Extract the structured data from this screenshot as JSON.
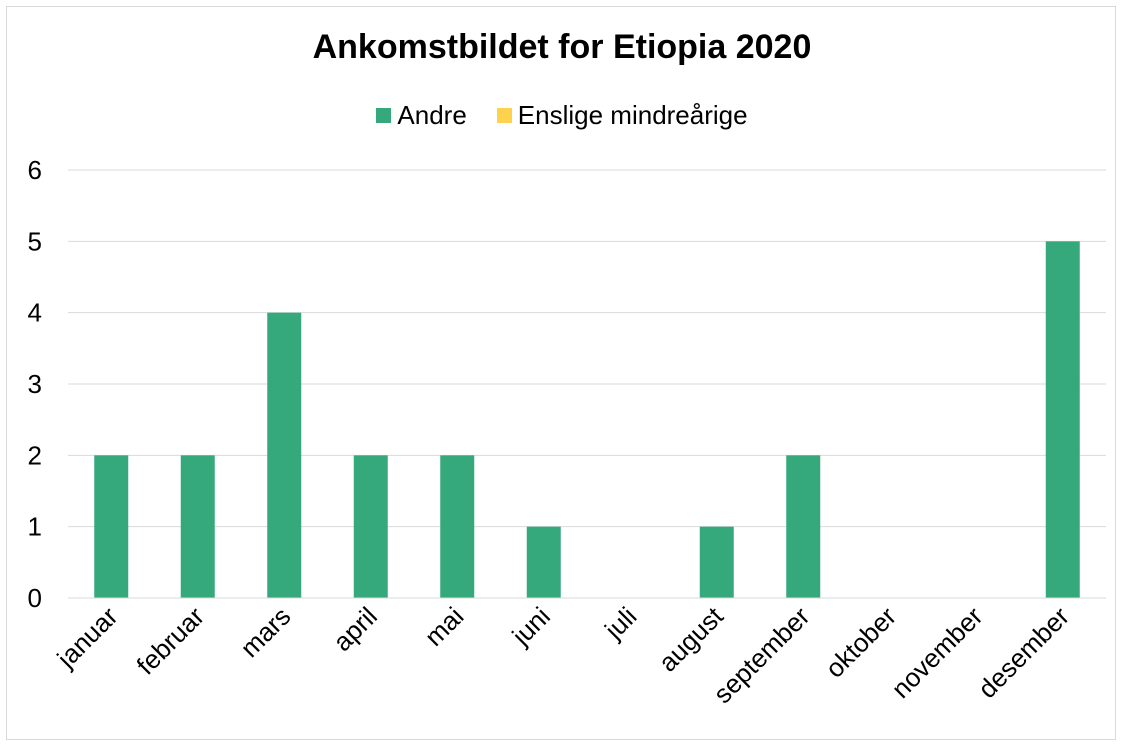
{
  "chart_data": {
    "type": "bar",
    "title": "Ankomstbildet for Etiopia 2020",
    "categories": [
      "januar",
      "februar",
      "mars",
      "april",
      "mai",
      "juni",
      "juli",
      "august",
      "september",
      "oktober",
      "november",
      "desember"
    ],
    "series": [
      {
        "name": "Andre",
        "color": "#35a97b",
        "values": [
          2,
          2,
          4,
          2,
          2,
          1,
          0,
          1,
          2,
          0,
          0,
          5
        ]
      },
      {
        "name": "Enslige mindreårige",
        "color": "#ffd24d",
        "values": [
          0,
          0,
          0,
          0,
          0,
          0,
          0,
          0,
          0,
          0,
          0,
          0
        ]
      }
    ],
    "yticks": [
      "0",
      "1",
      "2",
      "3",
      "4",
      "5",
      "6"
    ],
    "ylim": [
      0,
      6
    ],
    "stacked": true,
    "grid": true,
    "legend_position": "top",
    "xlabel": "",
    "ylabel": ""
  }
}
